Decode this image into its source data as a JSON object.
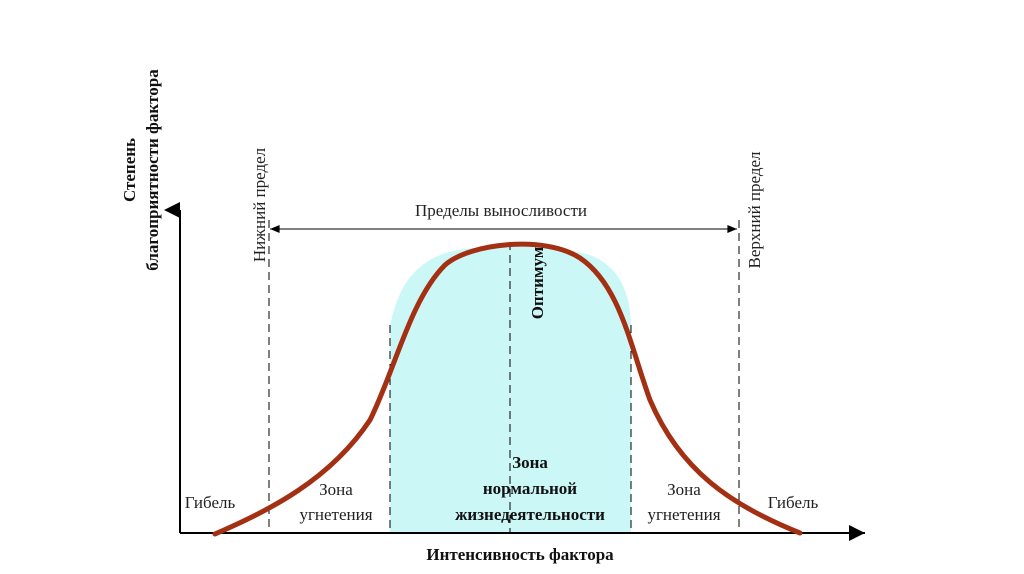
{
  "diagram": {
    "y_axis_label_line1": "Степень",
    "y_axis_label_line2": "благоприятности фактора",
    "x_axis_label": "Интенсивность фактора",
    "lower_limit_label": "Нижний предел",
    "upper_limit_label": "Верхний предел",
    "tolerance_label": "Пределы выносливости",
    "optimum_label": "Оптимум",
    "death_left_label": "Гибель",
    "death_right_label": "Гибель",
    "suppression_left_line1": "Зона",
    "suppression_left_line2": "угнетения",
    "suppression_right_line1": "Зона",
    "suppression_right_line2": "угнетения",
    "normal_zone_line1": "Зона",
    "normal_zone_line2": "нормальной",
    "normal_zone_line3": "жизнедеятельности",
    "colors": {
      "curve": "#a33013",
      "normal_zone_fill": "#ccf7f7",
      "axes": "#000000",
      "dashed_lines": "#000000",
      "text": "#222222"
    }
  }
}
